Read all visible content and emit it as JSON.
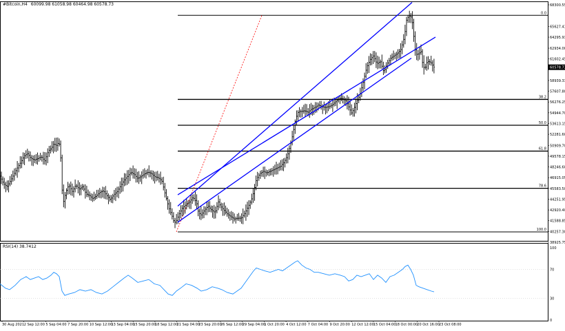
{
  "header": {
    "symbol": "#Bitcoin,H4",
    "ohlc": "60099.98 61058.98 60464.98 60578.73"
  },
  "rsi_label": "RSI(14) 38.7412",
  "colors": {
    "candle": "#000000",
    "channel": "#0000ff",
    "fib": "#000000",
    "rsi": "#1e90ff",
    "extension": "#ff0000"
  },
  "chart_data": [
    {
      "type": "candlestick",
      "title": "#Bitcoin,H4",
      "series": [
        {
          "name": "#Bitcoin,H4"
        }
      ],
      "price_axis": [
        "68300.55",
        "65627.41",
        "64295.93",
        "62934.00",
        "61602.45",
        "60578.73",
        "58939.33",
        "57607.80",
        "56276.25",
        "54944.70",
        "53613.15",
        "52281.60",
        "50909.70",
        "49578.15",
        "48246.60",
        "46915.05",
        "45583.50",
        "44251.95",
        "42920.40",
        "41588.85",
        "40257.30",
        "38925.75"
      ],
      "ylim": [
        38925.75,
        68300.55
      ],
      "current_price": 60578.73,
      "time_axis": [
        "30 Aug 2021",
        "2 Sep 12:00",
        "5 Sep 04:00",
        "7 Sep 20:00",
        "10 Sep 12:00",
        "13 Sep 04:00",
        "15 Sep 20:00",
        "18 Sep 12:00",
        "21 Sep 04:00",
        "23 Sep 20:00",
        "26 Sep 12:00",
        "29 Sep 04:00",
        "1 Oct 20:00",
        "4 Oct 12:00",
        "7 Oct 04:00",
        "9 Oct 20:00",
        "12 Oct 12:00",
        "15 Oct 04:00",
        "18 Oct 00:00",
        "20 Oct 16:00",
        "23 Oct 08:00"
      ],
      "price_path": [
        [
          0,
          47100
        ],
        [
          5,
          46200
        ],
        [
          10,
          45800
        ],
        [
          15,
          46500
        ],
        [
          20,
          47300
        ],
        [
          25,
          48100
        ],
        [
          30,
          48800
        ],
        [
          35,
          49600
        ],
        [
          40,
          49900
        ],
        [
          45,
          49300
        ],
        [
          50,
          49100
        ],
        [
          55,
          49300
        ],
        [
          60,
          49500
        ],
        [
          65,
          49000
        ],
        [
          70,
          50200
        ],
        [
          75,
          50600
        ],
        [
          78,
          51100
        ],
        [
          82,
          50900
        ],
        [
          85,
          51300
        ],
        [
          87,
          50800
        ],
        [
          89,
          48200
        ],
        [
          91,
          43500
        ],
        [
          94,
          44600
        ],
        [
          97,
          45500
        ],
        [
          100,
          46000
        ],
        [
          105,
          45200
        ],
        [
          110,
          46000
        ],
        [
          115,
          45500
        ],
        [
          120,
          45800
        ],
        [
          125,
          44900
        ],
        [
          130,
          44700
        ],
        [
          135,
          44300
        ],
        [
          140,
          44700
        ],
        [
          145,
          45100
        ],
        [
          150,
          45300
        ],
        [
          155,
          44700
        ],
        [
          160,
          44200
        ],
        [
          165,
          44800
        ],
        [
          170,
          45200
        ],
        [
          175,
          45900
        ],
        [
          180,
          46600
        ],
        [
          185,
          47100
        ],
        [
          190,
          47600
        ],
        [
          195,
          47300
        ],
        [
          200,
          46800
        ],
        [
          205,
          47100
        ],
        [
          210,
          47400
        ],
        [
          215,
          47600
        ],
        [
          220,
          47400
        ],
        [
          225,
          47000
        ],
        [
          230,
          46900
        ],
        [
          235,
          46500
        ],
        [
          240,
          44800
        ],
        [
          245,
          43200
        ],
        [
          250,
          42100
        ],
        [
          253,
          41300
        ],
        [
          256,
          41600
        ],
        [
          260,
          42400
        ],
        [
          265,
          43200
        ],
        [
          270,
          43600
        ],
        [
          275,
          43900
        ],
        [
          280,
          44500
        ],
        [
          285,
          43900
        ],
        [
          288,
          42600
        ],
        [
          292,
          42300
        ],
        [
          297,
          42900
        ],
        [
          302,
          43400
        ],
        [
          307,
          42900
        ],
        [
          312,
          42600
        ],
        [
          317,
          43900
        ],
        [
          320,
          43400
        ],
        [
          325,
          42900
        ],
        [
          330,
          42400
        ],
        [
          335,
          42100
        ],
        [
          340,
          41800
        ],
        [
          345,
          41900
        ],
        [
          350,
          41900
        ],
        [
          355,
          42500
        ],
        [
          360,
          43300
        ],
        [
          365,
          44200
        ],
        [
          368,
          45100
        ],
        [
          372,
          46700
        ],
        [
          377,
          47400
        ],
        [
          382,
          47700
        ],
        [
          387,
          47500
        ],
        [
          392,
          47700
        ],
        [
          397,
          47900
        ],
        [
          402,
          48100
        ],
        [
          407,
          48300
        ],
        [
          412,
          48800
        ],
        [
          417,
          49600
        ],
        [
          422,
          51200
        ],
        [
          425,
          52300
        ],
        [
          429,
          54200
        ],
        [
          433,
          55100
        ],
        [
          437,
          55100
        ],
        [
          442,
          55200
        ],
        [
          447,
          55000
        ],
        [
          452,
          55400
        ],
        [
          457,
          55600
        ],
        [
          462,
          55900
        ],
        [
          467,
          55700
        ],
        [
          472,
          55600
        ],
        [
          477,
          55700
        ],
        [
          482,
          55900
        ],
        [
          487,
          56300
        ],
        [
          492,
          56700
        ],
        [
          497,
          56700
        ],
        [
          502,
          56400
        ],
        [
          507,
          55500
        ],
        [
          510,
          54900
        ],
        [
          513,
          55300
        ],
        [
          517,
          56200
        ],
        [
          522,
          57100
        ],
        [
          527,
          58700
        ],
        [
          532,
          60500
        ],
        [
          537,
          61500
        ],
        [
          542,
          62000
        ],
        [
          547,
          61000
        ],
        [
          552,
          61300
        ],
        [
          557,
          60000
        ],
        [
          562,
          61000
        ],
        [
          567,
          61700
        ],
        [
          572,
          62000
        ],
        [
          577,
          62300
        ],
        [
          582,
          62800
        ],
        [
          587,
          64400
        ],
        [
          590,
          66400
        ],
        [
          593,
          66900
        ],
        [
          596,
          66900
        ],
        [
          599,
          65900
        ],
        [
          602,
          62900
        ],
        [
          605,
          62100
        ],
        [
          608,
          62300
        ],
        [
          611,
          62500
        ],
        [
          614,
          60600
        ],
        [
          617,
          60500
        ],
        [
          620,
          61300
        ],
        [
          625,
          61200
        ],
        [
          630,
          60578
        ]
      ],
      "channel": {
        "upper": [
          [
            258,
            43400
          ],
          [
            598,
            68600
          ]
        ],
        "middle": [
          [
            258,
            44800
          ],
          [
            632,
            64300
          ]
        ],
        "lower": [
          [
            258,
            41400
          ],
          [
            597,
            61700
          ]
        ]
      },
      "extension_line": [
        [
          256,
          40200
        ],
        [
          380,
          67000
        ]
      ],
      "fib_levels": [
        {
          "label": "0.0",
          "price": 67000
        },
        {
          "label": "38.2",
          "price": 56600
        },
        {
          "label": "50.0",
          "price": 53400
        },
        {
          "label": "61.8",
          "price": 50200
        },
        {
          "label": "78.6",
          "price": 45600
        },
        {
          "label": "100.0",
          "price": 40200
        }
      ]
    },
    {
      "type": "line",
      "title": "RSI(14) 38.7412",
      "series": [
        {
          "name": "RSI(14)"
        }
      ],
      "y_axis": [
        "100",
        "70",
        "30",
        "0"
      ],
      "ylim": [
        0,
        100
      ],
      "levels": [
        70,
        30
      ],
      "rsi_path": [
        [
          0,
          50
        ],
        [
          8,
          44
        ],
        [
          14,
          42
        ],
        [
          22,
          48
        ],
        [
          30,
          56
        ],
        [
          38,
          60
        ],
        [
          44,
          56
        ],
        [
          50,
          58
        ],
        [
          56,
          60
        ],
        [
          62,
          56
        ],
        [
          68,
          58
        ],
        [
          74,
          62
        ],
        [
          78,
          66
        ],
        [
          82,
          64
        ],
        [
          86,
          60
        ],
        [
          90,
          40
        ],
        [
          94,
          34
        ],
        [
          100,
          36
        ],
        [
          108,
          38
        ],
        [
          116,
          42
        ],
        [
          124,
          40
        ],
        [
          132,
          42
        ],
        [
          140,
          38
        ],
        [
          148,
          36
        ],
        [
          156,
          40
        ],
        [
          164,
          46
        ],
        [
          172,
          52
        ],
        [
          180,
          58
        ],
        [
          186,
          62
        ],
        [
          192,
          58
        ],
        [
          200,
          52
        ],
        [
          208,
          54
        ],
        [
          216,
          56
        ],
        [
          224,
          50
        ],
        [
          232,
          48
        ],
        [
          238,
          42
        ],
        [
          244,
          36
        ],
        [
          250,
          34
        ],
        [
          256,
          40
        ],
        [
          262,
          44
        ],
        [
          270,
          50
        ],
        [
          278,
          48
        ],
        [
          286,
          44
        ],
        [
          292,
          40
        ],
        [
          300,
          42
        ],
        [
          308,
          46
        ],
        [
          316,
          44
        ],
        [
          322,
          42
        ],
        [
          330,
          38
        ],
        [
          338,
          36
        ],
        [
          344,
          40
        ],
        [
          350,
          44
        ],
        [
          356,
          52
        ],
        [
          362,
          60
        ],
        [
          368,
          68
        ],
        [
          372,
          72
        ],
        [
          378,
          70
        ],
        [
          384,
          68
        ],
        [
          392,
          66
        ],
        [
          398,
          68
        ],
        [
          404,
          70
        ],
        [
          410,
          68
        ],
        [
          416,
          72
        ],
        [
          422,
          76
        ],
        [
          428,
          80
        ],
        [
          432,
          82
        ],
        [
          438,
          76
        ],
        [
          444,
          72
        ],
        [
          450,
          70
        ],
        [
          456,
          66
        ],
        [
          462,
          66
        ],
        [
          470,
          64
        ],
        [
          478,
          62
        ],
        [
          486,
          64
        ],
        [
          494,
          62
        ],
        [
          500,
          60
        ],
        [
          506,
          54
        ],
        [
          512,
          56
        ],
        [
          518,
          62
        ],
        [
          524,
          60
        ],
        [
          530,
          62
        ],
        [
          536,
          64
        ],
        [
          542,
          56
        ],
        [
          548,
          62
        ],
        [
          554,
          58
        ],
        [
          560,
          52
        ],
        [
          566,
          60
        ],
        [
          572,
          62
        ],
        [
          578,
          66
        ],
        [
          584,
          70
        ],
        [
          588,
          74
        ],
        [
          592,
          76
        ],
        [
          596,
          70
        ],
        [
          600,
          62
        ],
        [
          604,
          48
        ],
        [
          608,
          46
        ],
        [
          614,
          44
        ],
        [
          620,
          42
        ],
        [
          626,
          40
        ],
        [
          630,
          39
        ]
      ]
    }
  ]
}
